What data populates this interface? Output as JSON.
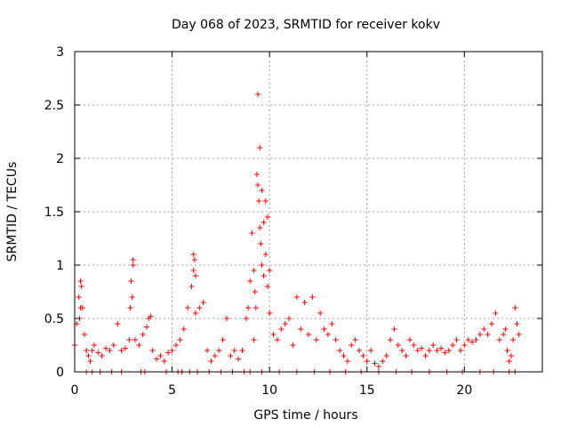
{
  "chart_data": {
    "type": "scatter",
    "title": "Day 068 of 2023, SRMTID for receiver kokv",
    "xlabel": "GPS time / hours",
    "ylabel": "SRMTID / TECUs",
    "xlim": [
      0,
      24
    ],
    "ylim": [
      0,
      3
    ],
    "grid": true,
    "marker": "+",
    "x_ticks": [
      0,
      5,
      10,
      15,
      20
    ],
    "x_tick_labels": [
      "0",
      "5",
      "10",
      "15",
      "20"
    ],
    "y_ticks": [
      0,
      0.5,
      1,
      1.5,
      2,
      2.5,
      3
    ],
    "y_tick_labels": [
      "0",
      "0.5",
      "1",
      "1.5",
      "2",
      "2.5",
      "3"
    ],
    "series": [
      {
        "name": "SRMTID",
        "color": "#ff0000",
        "x": [
          0.0,
          0.1,
          0.2,
          0.3,
          0.35,
          0.4,
          0.5,
          0.6,
          0.7,
          0.8,
          0.9,
          1.0,
          1.2,
          1.4,
          1.6,
          1.8,
          2.0,
          2.2,
          2.4,
          2.6,
          2.8,
          2.9,
          3.0,
          3.1,
          3.3,
          3.5,
          3.7,
          3.8,
          3.9,
          4.0,
          4.2,
          4.4,
          4.6,
          4.8,
          5.0,
          5.2,
          5.4,
          5.6,
          5.8,
          6.0,
          6.1,
          6.2,
          6.4,
          6.6,
          6.8,
          7.0,
          7.2,
          7.4,
          7.6,
          7.8,
          8.0,
          8.2,
          8.4,
          8.6,
          8.8,
          8.9,
          9.0,
          9.1,
          9.2,
          9.3,
          9.4,
          9.5,
          9.6,
          9.7,
          9.8,
          9.9,
          10.0,
          10.2,
          10.4,
          10.6,
          10.8,
          11.0,
          11.2,
          11.4,
          11.6,
          11.8,
          12.0,
          12.2,
          12.4,
          12.6,
          12.8,
          13.0,
          13.2,
          13.4,
          13.6,
          13.8,
          14.0,
          14.2,
          14.4,
          14.6,
          14.8,
          15.0,
          15.2,
          15.4,
          15.6,
          15.8,
          16.0,
          16.2,
          16.4,
          16.6,
          16.8,
          17.0,
          17.2,
          17.4,
          17.6,
          17.8,
          18.0,
          18.2,
          18.4,
          18.6,
          18.8,
          19.0,
          19.2,
          19.4,
          19.6,
          19.8,
          20.0,
          20.2,
          20.4,
          20.6,
          20.8,
          21.0,
          21.2,
          21.4,
          21.6,
          21.8,
          22.0,
          22.1,
          22.2,
          22.3,
          22.4,
          22.5,
          22.6,
          22.7,
          22.8,
          9.35,
          9.4,
          9.45,
          9.5,
          9.55,
          9.6,
          9.2,
          9.25,
          9.7,
          9.8,
          9.9,
          10.0,
          2.95,
          3.0,
          2.85,
          6.1,
          6.15,
          6.2,
          0.3,
          0.25
        ],
        "y": [
          0.25,
          0.45,
          0.7,
          0.85,
          0.8,
          0.6,
          0.35,
          0.2,
          0.15,
          0.1,
          0.2,
          0.25,
          0.18,
          0.15,
          0.22,
          0.2,
          0.25,
          0.45,
          0.2,
          0.22,
          0.3,
          0.85,
          1.05,
          0.3,
          0.25,
          0.35,
          0.42,
          0.5,
          0.52,
          0.2,
          0.12,
          0.15,
          0.1,
          0.18,
          0.2,
          0.25,
          0.3,
          0.4,
          0.6,
          0.8,
          1.1,
          0.55,
          0.6,
          0.65,
          0.2,
          0.1,
          0.15,
          0.2,
          0.3,
          0.5,
          0.15,
          0.2,
          0.12,
          0.2,
          0.5,
          0.6,
          0.85,
          1.3,
          0.3,
          0.6,
          2.6,
          2.1,
          1.7,
          1.4,
          1.1,
          0.8,
          0.55,
          0.35,
          0.3,
          0.4,
          0.45,
          0.5,
          0.25,
          0.7,
          0.4,
          0.65,
          0.35,
          0.7,
          0.3,
          0.55,
          0.4,
          0.35,
          0.45,
          0.3,
          0.2,
          0.15,
          0.1,
          0.25,
          0.3,
          0.2,
          0.15,
          0.1,
          0.2,
          0.08,
          0.05,
          0.1,
          0.15,
          0.3,
          0.4,
          0.25,
          0.2,
          0.15,
          0.3,
          0.25,
          0.2,
          0.22,
          0.15,
          0.2,
          0.25,
          0.2,
          0.22,
          0.18,
          0.2,
          0.25,
          0.3,
          0.2,
          0.25,
          0.3,
          0.28,
          0.3,
          0.35,
          0.4,
          0.35,
          0.45,
          0.55,
          0.3,
          0.35,
          0.4,
          0.2,
          0.1,
          0.15,
          0.3,
          0.6,
          0.45,
          0.35,
          1.85,
          1.75,
          1.6,
          1.35,
          1.2,
          1.0,
          0.95,
          0.75,
          0.9,
          1.6,
          1.45,
          0.95,
          0.7,
          1.0,
          0.6,
          0.95,
          1.05,
          0.9,
          0.6,
          0.5
        ],
        "zero_markers_x": [
          0.6,
          0.9,
          1.3,
          1.9,
          2.4,
          3.4,
          3.6,
          4.7,
          5.3,
          5.5,
          5.9,
          6.3,
          6.9,
          7.5,
          8.1,
          8.7,
          9.0,
          9.6,
          10.5,
          11.4,
          12.3,
          13.1,
          13.9,
          14.7,
          15.6,
          16.5,
          17.3,
          18.2,
          19.1,
          19.9,
          20.8,
          21.5,
          22.3,
          22.6
        ]
      }
    ]
  }
}
